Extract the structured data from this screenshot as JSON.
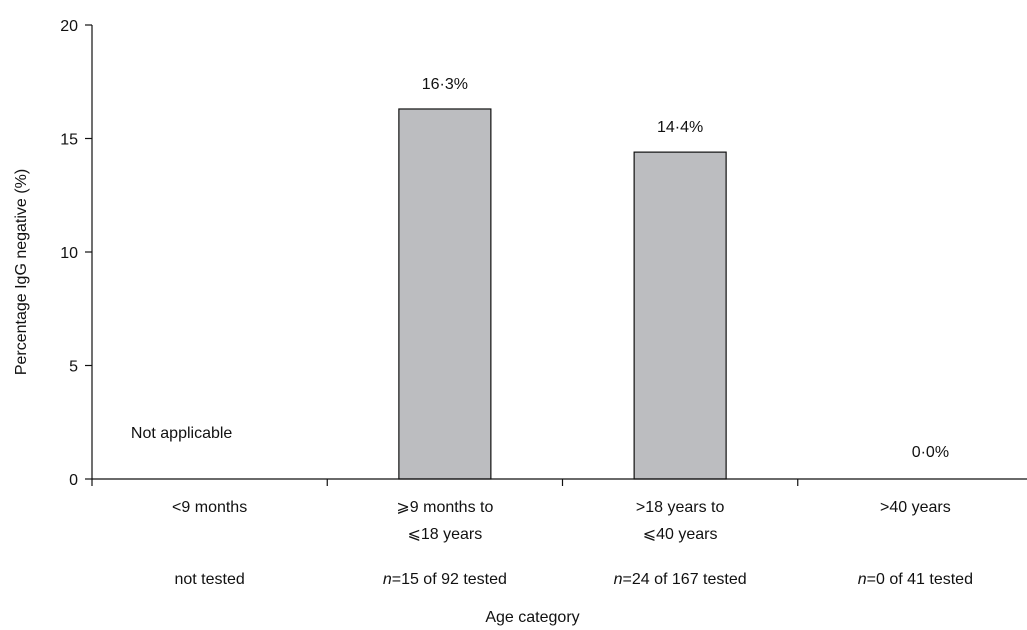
{
  "chart_data": {
    "type": "bar",
    "categories": [
      [
        "<9  months"
      ],
      [
        "⩾9 months to",
        "⩽18 years"
      ],
      [
        ">18 years to",
        "⩽40 years"
      ],
      [
        ">40 years"
      ]
    ],
    "values": [
      null,
      16.3,
      14.4,
      0.0
    ],
    "data_labels": [
      "Not applicable",
      "16·3%",
      "14·4%",
      "0·0%"
    ],
    "sample_notes": [
      {
        "italic": "",
        "text": "not tested"
      },
      {
        "italic": "n",
        "text": "=15 of 92 tested"
      },
      {
        "italic": "n",
        "text": "=24 of 167 tested"
      },
      {
        "italic": "n",
        "text": "=0 of 41 tested"
      }
    ],
    "xlabel": "Age category",
    "ylabel": "Percentage IgG negative (%)",
    "ylim": [
      0,
      20
    ],
    "yticks": [
      0,
      5,
      10,
      15,
      20
    ],
    "grid": false,
    "bar_color": "#bcbdc0"
  }
}
